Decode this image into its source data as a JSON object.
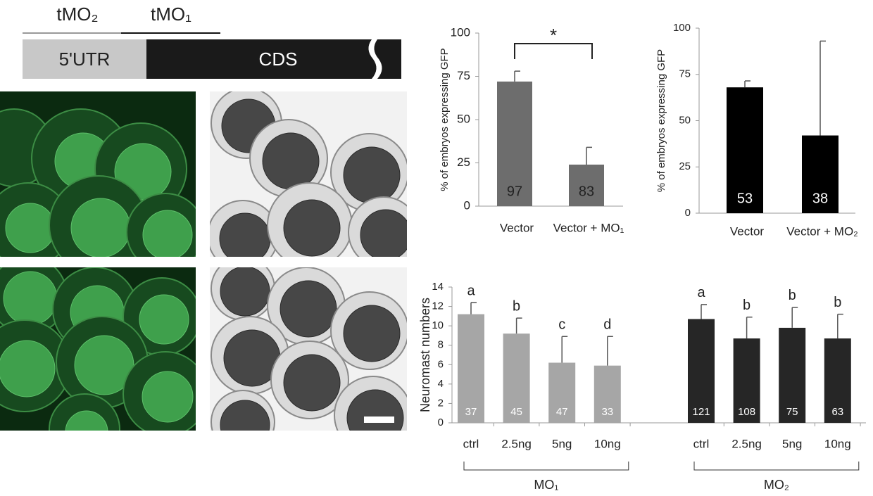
{
  "diagram": {
    "labels": [
      "tMO₂",
      "tMO₁"
    ],
    "regions": [
      "5'UTR",
      "CDS"
    ]
  },
  "chart_data": [
    {
      "type": "bar",
      "ylabel": "% of embryos expressing GFP",
      "categories": [
        "Vector",
        "Vector + MO₁"
      ],
      "values": [
        72,
        24
      ],
      "errors": [
        6,
        10
      ],
      "n": [
        97,
        83
      ],
      "significance": "*",
      "color": "#6d6d6d",
      "ylim": [
        0,
        100
      ],
      "yticks": [
        0,
        25,
        50,
        75,
        100
      ]
    },
    {
      "type": "bar",
      "ylabel": "% of embryos expressing GFP",
      "categories": [
        "Vector",
        "Vector + MO₂"
      ],
      "values": [
        68,
        42
      ],
      "errors": [
        3.5,
        51
      ],
      "n": [
        53,
        38
      ],
      "color": "#000000",
      "ylim": [
        0,
        100
      ],
      "yticks": [
        0,
        25,
        50,
        75,
        100
      ]
    },
    {
      "type": "bar",
      "ylabel": "Neuromast  numbers",
      "categories": [
        "ctrl",
        "2.5ng",
        "5ng",
        "10ng"
      ],
      "series": [
        {
          "name": "MO₁",
          "color": "#a6a6a6",
          "values": [
            11.2,
            9.2,
            6.2,
            5.9
          ],
          "errors": [
            1.2,
            1.6,
            2.7,
            3.0
          ],
          "letters": [
            "a",
            "b",
            "c",
            "d"
          ],
          "n": [
            37,
            45,
            47,
            33
          ]
        },
        {
          "name": "MO₂",
          "color": "#262626",
          "values": [
            10.7,
            8.7,
            9.8,
            8.7
          ],
          "errors": [
            1.5,
            2.2,
            2.1,
            2.5
          ],
          "letters": [
            "a",
            "b",
            "b",
            "b"
          ],
          "n": [
            121,
            108,
            75,
            63
          ]
        }
      ],
      "ylim": [
        0,
        14
      ],
      "yticks": [
        0,
        2,
        4,
        6,
        8,
        10,
        12,
        14
      ]
    }
  ]
}
